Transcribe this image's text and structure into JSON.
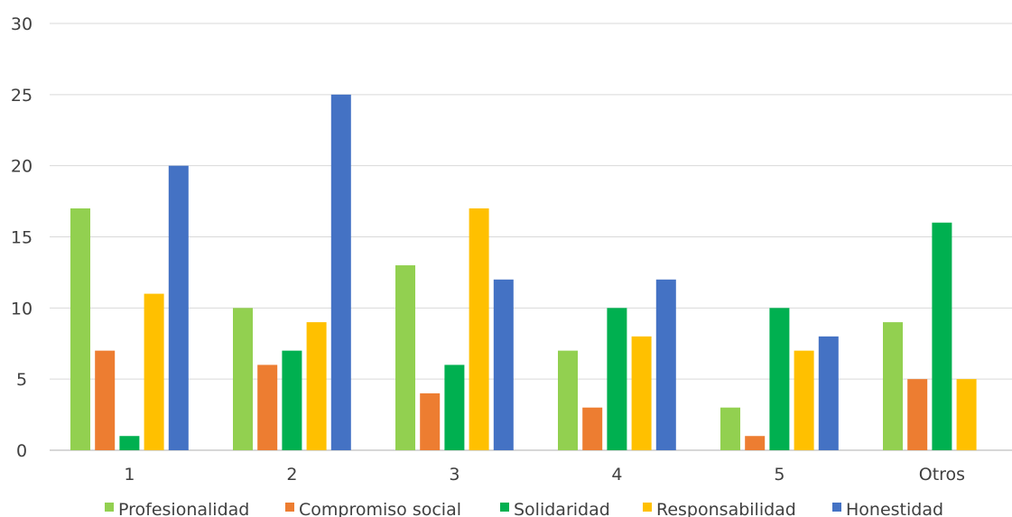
{
  "chart_data": {
    "type": "bar",
    "title": "",
    "xlabel": "",
    "ylabel": "",
    "categories": [
      "1",
      "2",
      "3",
      "4",
      "5",
      "Otros"
    ],
    "ylim": [
      0,
      30
    ],
    "yticks": [
      0,
      5,
      10,
      15,
      20,
      25,
      30
    ],
    "grid": "horizontal",
    "legend_position": "bottom",
    "series": [
      {
        "name": "Profesionalidad",
        "color": "#92d050",
        "values": [
          17,
          10,
          13,
          7,
          3,
          9
        ]
      },
      {
        "name": "Compromiso social",
        "color": "#ed7d31",
        "values": [
          7,
          6,
          4,
          3,
          1,
          5
        ]
      },
      {
        "name": "Solidaridad",
        "color": "#00b050",
        "values": [
          1,
          7,
          6,
          10,
          10,
          16
        ]
      },
      {
        "name": "Responsabilidad",
        "color": "#ffc000",
        "values": [
          11,
          9,
          17,
          8,
          7,
          5
        ]
      },
      {
        "name": "Honestidad",
        "color": "#4472c4",
        "values": [
          20,
          25,
          12,
          12,
          8,
          null
        ]
      }
    ]
  }
}
